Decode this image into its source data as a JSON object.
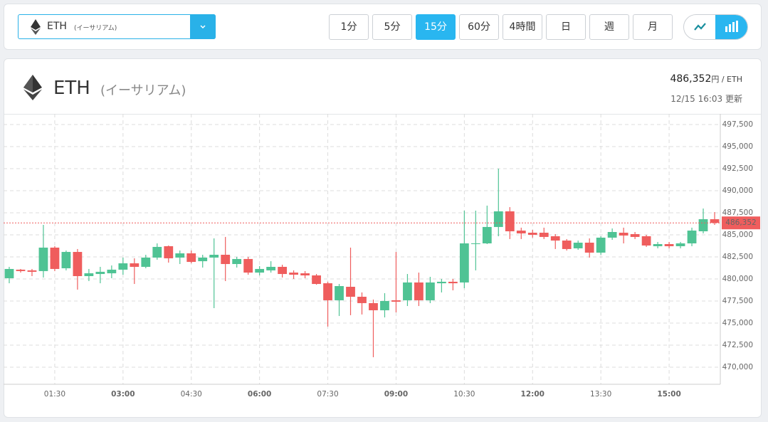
{
  "selector": {
    "symbol": "ETH",
    "name": "(イーサリアム)"
  },
  "intervals": {
    "options": [
      "1分",
      "5分",
      "15分",
      "60分",
      "4時間",
      "日",
      "週",
      "月"
    ],
    "active": 2
  },
  "asset": {
    "symbol": "ETH",
    "name": "(イーサリアム)",
    "unit": "円 / ETH",
    "updated": "12/15 16:03 更新"
  },
  "chart_data": {
    "type": "candlestick",
    "x": [
      "00:30",
      "00:45",
      "01:00",
      "01:15",
      "01:30",
      "01:45",
      "02:00",
      "02:15",
      "02:30",
      "02:45",
      "03:00",
      "03:15",
      "03:30",
      "03:45",
      "04:00",
      "04:15",
      "04:30",
      "04:45",
      "05:00",
      "05:15",
      "05:30",
      "05:45",
      "06:00",
      "06:15",
      "06:30",
      "06:45",
      "07:00",
      "07:15",
      "07:30",
      "07:45",
      "08:00",
      "08:15",
      "08:30",
      "08:45",
      "09:00",
      "09:15",
      "09:30",
      "09:45",
      "10:00",
      "10:15",
      "10:30",
      "10:45",
      "11:00",
      "11:15",
      "11:30",
      "11:45",
      "12:00",
      "12:15",
      "12:30",
      "12:45",
      "13:00",
      "13:15",
      "13:30",
      "13:45",
      "14:00",
      "14:15",
      "14:30",
      "14:45",
      "15:00",
      "15:15",
      "15:30",
      "15:45",
      "16:00"
    ],
    "open": [
      480080,
      481050,
      480970,
      480890,
      483550,
      481210,
      483060,
      480320,
      480560,
      480640,
      481050,
      481770,
      481370,
      482420,
      483710,
      482420,
      482900,
      482010,
      482420,
      482740,
      481690,
      482260,
      480720,
      480970,
      481370,
      480720,
      480640,
      480400,
      479510,
      477580,
      479110,
      477980,
      477260,
      476450,
      477580,
      477580,
      479600,
      477580,
      479510,
      479680,
      479600,
      483950,
      484030,
      485890,
      487660,
      485480,
      485240,
      485240,
      484840,
      484350,
      483470,
      484110,
      482980,
      484680,
      485240,
      485080,
      484840,
      483710,
      483950,
      483710,
      484030,
      485400,
      486770
    ],
    "high": [
      481370,
      481130,
      481130,
      486130,
      483710,
      483220,
      483390,
      481130,
      481370,
      481530,
      482420,
      482340,
      482740,
      484030,
      483790,
      483220,
      483220,
      482740,
      484600,
      484760,
      482500,
      482500,
      481450,
      482010,
      481610,
      480970,
      480890,
      480560,
      479680,
      479430,
      483550,
      478470,
      477660,
      478390,
      483060,
      480560,
      480720,
      480240,
      480000,
      480000,
      487740,
      487740,
      488310,
      492500,
      488140,
      485810,
      485560,
      485810,
      485080,
      484520,
      484350,
      484600,
      484840,
      485720,
      485810,
      485320,
      485000,
      484190,
      484190,
      484190,
      485810,
      487980,
      487580
    ],
    "low": [
      479510,
      480720,
      480320,
      480160,
      480890,
      480970,
      478790,
      479760,
      479510,
      480080,
      480480,
      479430,
      481210,
      482180,
      481850,
      481690,
      481770,
      481290,
      476690,
      479760,
      481290,
      480480,
      480400,
      480720,
      480160,
      480000,
      480080,
      479350,
      474600,
      475800,
      475890,
      475970,
      471130,
      475640,
      476210,
      476930,
      476930,
      477260,
      478470,
      478710,
      478950,
      480970,
      483950,
      484840,
      484520,
      484520,
      484680,
      484520,
      483390,
      483220,
      483300,
      482420,
      482740,
      484430,
      484030,
      484520,
      483630,
      483470,
      483470,
      483470,
      483710,
      485160,
      486130
    ],
    "close": [
      481130,
      480890,
      480810,
      483550,
      481130,
      483060,
      480320,
      480640,
      480810,
      481050,
      481770,
      481370,
      482420,
      483630,
      482340,
      482900,
      481930,
      482420,
      482740,
      481690,
      482260,
      480720,
      481130,
      481370,
      480560,
      480480,
      480400,
      479430,
      477580,
      479190,
      477980,
      477260,
      476450,
      477500,
      477420,
      479600,
      477580,
      479600,
      479680,
      479510,
      484030,
      484030,
      485890,
      487660,
      485400,
      485160,
      485000,
      484760,
      484350,
      483390,
      484110,
      482980,
      484680,
      485320,
      484920,
      484760,
      483790,
      483950,
      483710,
      484030,
      485480,
      486770,
      486352
    ],
    "up_color": "#4fc394",
    "down_color": "#ef5d5d",
    "last_price": {
      "value": 486352,
      "label": "486,352"
    },
    "ylim": [
      468060,
      498710
    ],
    "yticks": [
      {
        "value": 470000,
        "label": "470,000"
      },
      {
        "value": 472500,
        "label": "472,500"
      },
      {
        "value": 475000,
        "label": "475,000"
      },
      {
        "value": 477500,
        "label": "477,500"
      },
      {
        "value": 480000,
        "label": "480,000"
      },
      {
        "value": 482500,
        "label": "482,500"
      },
      {
        "value": 485000,
        "label": "485,000"
      },
      {
        "value": 487500,
        "label": "487,500"
      },
      {
        "value": 490000,
        "label": "490,000"
      },
      {
        "value": 492500,
        "label": "492,500"
      },
      {
        "value": 495000,
        "label": "495,000"
      },
      {
        "value": 497500,
        "label": "497,500"
      }
    ],
    "xticks": [
      "01:30",
      "03:00",
      "04:30",
      "06:00",
      "07:30",
      "09:00",
      "10:30",
      "12:00",
      "13:30",
      "15:00"
    ],
    "grid": true
  }
}
